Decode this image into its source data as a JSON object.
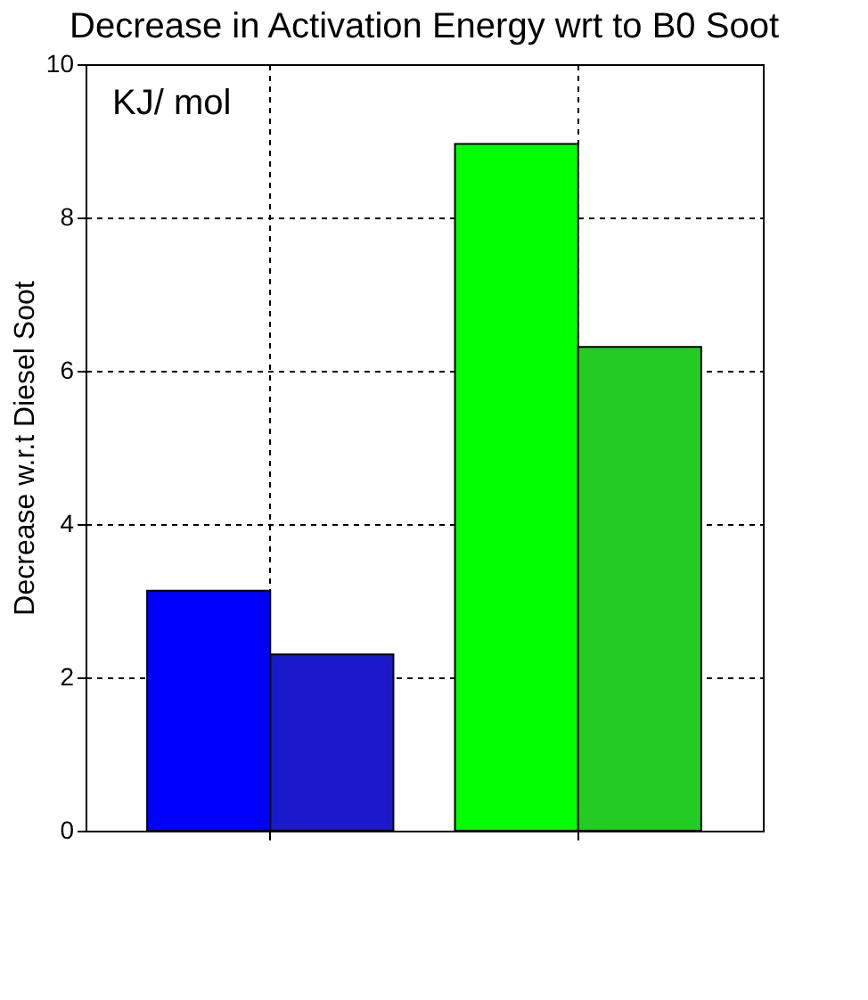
{
  "chart_data": {
    "type": "bar",
    "title": "Decrease in Activation Energy wrt to B0 Soot",
    "ylabel": "Decrease  w.r.t Diesel Soot",
    "categories": [
      null,
      null
    ],
    "series": [
      {
        "colors": [
          "#0000ff",
          "#00ff00"
        ],
        "values": [
          3.13,
          8.96
        ]
      },
      {
        "colors": [
          "#1a1acc",
          "#22cc22"
        ],
        "values": [
          2.3,
          6.31
        ]
      }
    ],
    "ylim": [
      0,
      10
    ],
    "yticks": [
      0,
      2,
      4,
      6,
      8,
      10
    ],
    "grid": true,
    "annotations": [
      "KJ/ mol"
    ],
    "tick_labels": "y"
  }
}
